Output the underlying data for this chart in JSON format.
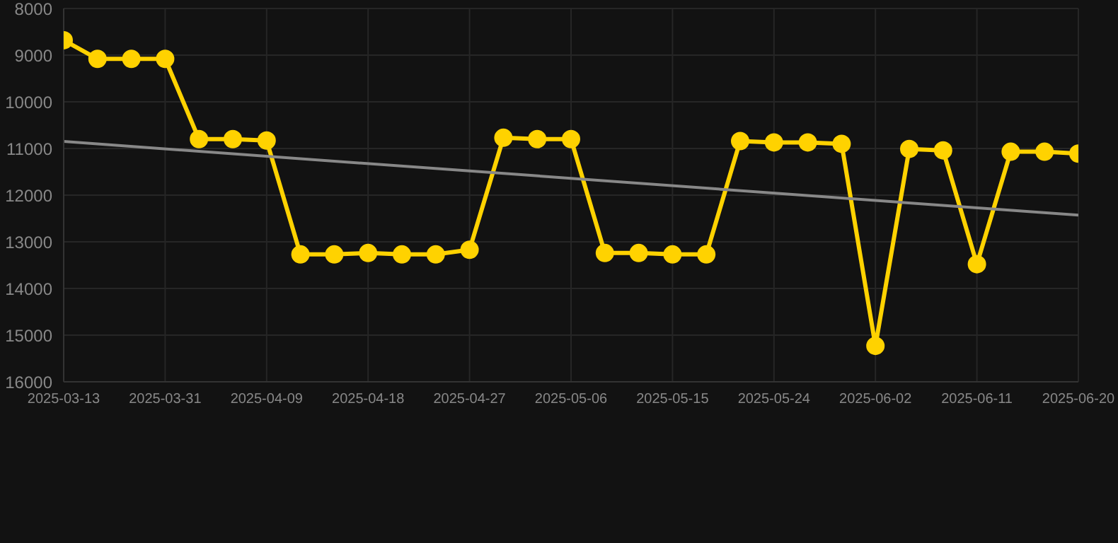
{
  "chart_data": {
    "type": "line",
    "categories": [
      "2025-03-13",
      null,
      null,
      "2025-03-31",
      null,
      null,
      "2025-04-09",
      null,
      null,
      "2025-04-18",
      null,
      null,
      "2025-04-27",
      null,
      null,
      "2025-05-06",
      null,
      null,
      "2025-05-15",
      null,
      null,
      "2025-05-24",
      null,
      null,
      "2025-06-02",
      null,
      null,
      "2025-06-11",
      null,
      null,
      "2025-06-20"
    ],
    "series": [
      {
        "color": "#ffd200",
        "marker": "circle",
        "values": [
          8680,
          9080,
          9080,
          9080,
          10800,
          10800,
          10830,
          13270,
          13270,
          13240,
          13270,
          13270,
          13170,
          10770,
          10800,
          10800,
          13240,
          13240,
          13270,
          13270,
          10840,
          10870,
          10870,
          10900,
          15230,
          11010,
          11040,
          13480,
          11070,
          11070,
          11110
        ]
      },
      {
        "color": "#888888",
        "marker": "none",
        "values": [
          10850,
          null,
          null,
          null,
          null,
          null,
          null,
          null,
          null,
          null,
          null,
          null,
          null,
          null,
          null,
          null,
          null,
          null,
          null,
          null,
          null,
          null,
          null,
          null,
          null,
          null,
          null,
          null,
          null,
          null,
          12430
        ]
      }
    ],
    "ylim": [
      16000,
      8000
    ],
    "yticks": [
      8000,
      9000,
      10000,
      11000,
      12000,
      13000,
      14000,
      15000,
      16000
    ],
    "grid": true,
    "legend": false
  }
}
